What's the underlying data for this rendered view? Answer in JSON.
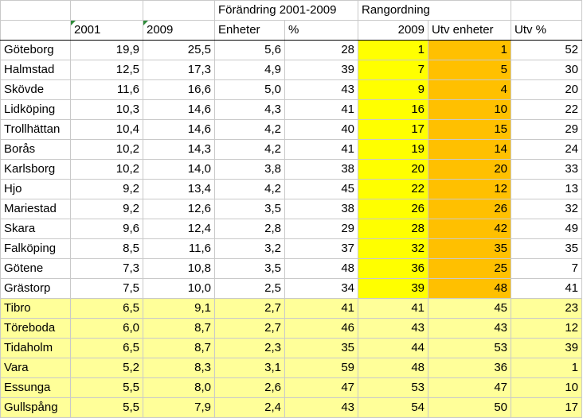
{
  "header": {
    "group_change": "Förändring 2001-2009",
    "group_rank": "Rangordning",
    "col_2001": "2001",
    "col_2009": "2009",
    "col_units": "Enheter",
    "col_pct": "%",
    "col_rank_2009": "2009",
    "col_rank_units": "Utv enheter",
    "col_rank_pct": "Utv %"
  },
  "rows": [
    [
      "Göteborg",
      "19,9",
      "25,5",
      "5,6",
      "28",
      "1",
      "1",
      "52"
    ],
    [
      "Halmstad",
      "12,5",
      "17,3",
      "4,9",
      "39",
      "7",
      "5",
      "30"
    ],
    [
      "Skövde",
      "11,6",
      "16,6",
      "5,0",
      "43",
      "9",
      "4",
      "20"
    ],
    [
      "Lidköping",
      "10,3",
      "14,6",
      "4,3",
      "41",
      "16",
      "10",
      "22"
    ],
    [
      "Trollhättan",
      "10,4",
      "14,6",
      "4,2",
      "40",
      "17",
      "15",
      "29"
    ],
    [
      "Borås",
      "10,2",
      "14,3",
      "4,2",
      "41",
      "19",
      "14",
      "24"
    ],
    [
      "Karlsborg",
      "10,2",
      "14,0",
      "3,8",
      "38",
      "20",
      "20",
      "33"
    ],
    [
      "Hjo",
      "9,2",
      "13,4",
      "4,2",
      "45",
      "22",
      "12",
      "13"
    ],
    [
      "Mariestad",
      "9,2",
      "12,6",
      "3,5",
      "38",
      "26",
      "26",
      "32"
    ],
    [
      "Skara",
      "9,6",
      "12,4",
      "2,8",
      "29",
      "28",
      "42",
      "49"
    ],
    [
      "Falköping",
      "8,5",
      "11,6",
      "3,2",
      "37",
      "32",
      "35",
      "35"
    ],
    [
      "Götene",
      "7,3",
      "10,8",
      "3,5",
      "48",
      "36",
      "25",
      "7"
    ],
    [
      "Grästorp",
      "7,5",
      "10,0",
      "2,5",
      "34",
      "39",
      "48",
      "41"
    ],
    [
      "Tibro",
      "6,5",
      "9,1",
      "2,7",
      "41",
      "41",
      "45",
      "23"
    ],
    [
      "Töreboda",
      "6,0",
      "8,7",
      "2,7",
      "46",
      "43",
      "43",
      "12"
    ],
    [
      "Tidaholm",
      "6,5",
      "8,7",
      "2,3",
      "35",
      "44",
      "53",
      "39"
    ],
    [
      "Vara",
      "5,2",
      "8,3",
      "3,1",
      "59",
      "48",
      "36",
      "1"
    ],
    [
      "Essunga",
      "5,5",
      "8,0",
      "2,6",
      "47",
      "53",
      "47",
      "10"
    ],
    [
      "Gullspång",
      "5,5",
      "7,9",
      "2,4",
      "43",
      "54",
      "50",
      "17"
    ]
  ],
  "highlight_top_count": 13,
  "colors": {
    "yellow": "#ffff00",
    "orange": "#ffc000",
    "light_yellow": "#ffff99",
    "corner_marker": "#2e8b3a"
  }
}
